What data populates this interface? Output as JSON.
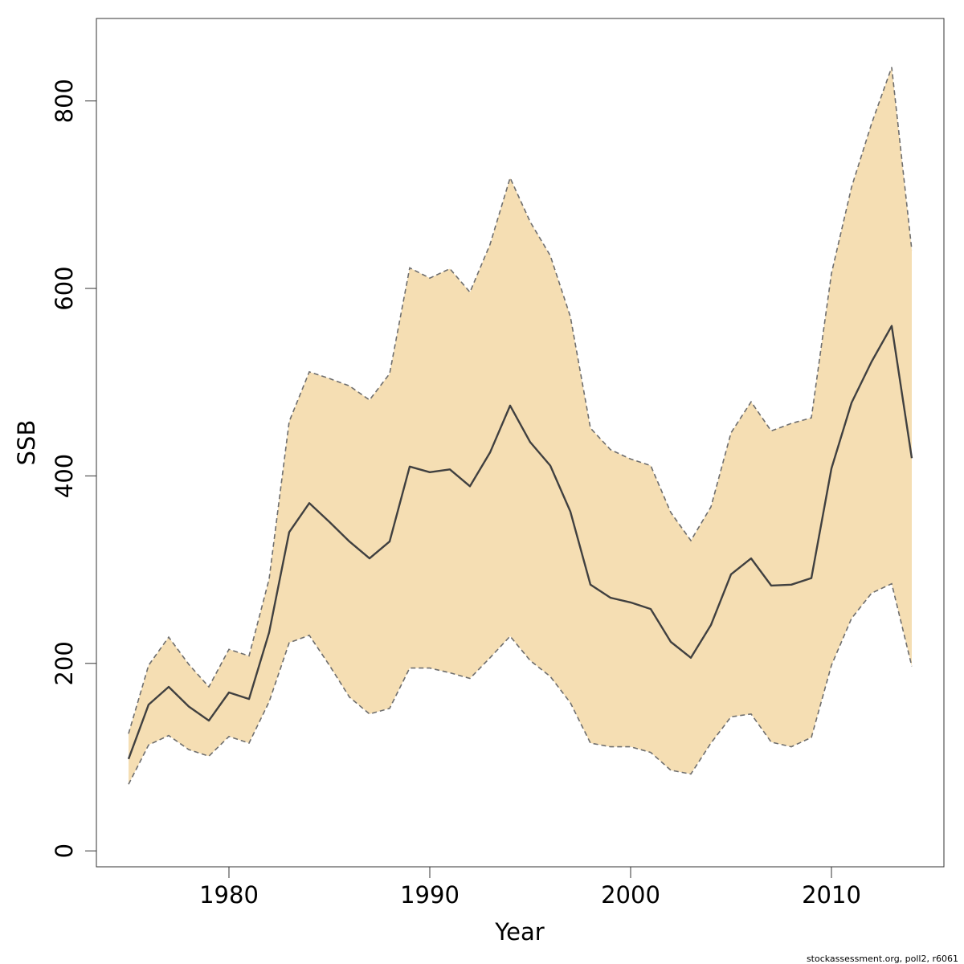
{
  "chart_data": {
    "type": "area",
    "title": "",
    "xlabel": "Year",
    "ylabel": "SSB",
    "xlim": [
      1973.4,
      2015.6
    ],
    "ylim": [
      -17,
      888
    ],
    "x_ticks": [
      1980,
      1990,
      2000,
      2010
    ],
    "y_ticks": [
      0,
      200,
      400,
      600,
      800
    ],
    "grid": false,
    "band_color": "#f5deb3",
    "line_color": "#404040",
    "bound_color": "#6e6e6e",
    "x": [
      1975,
      1976,
      1977,
      1978,
      1979,
      1980,
      1981,
      1982,
      1983,
      1984,
      1985,
      1986,
      1987,
      1988,
      1989,
      1990,
      1991,
      1992,
      1993,
      1994,
      1995,
      1996,
      1997,
      1998,
      1999,
      2000,
      2001,
      2002,
      2003,
      2004,
      2005,
      2006,
      2007,
      2008,
      2009,
      2010,
      2011,
      2012,
      2013,
      2014
    ],
    "series": [
      {
        "role": "estimate",
        "values": [
          98,
          156,
          175,
          154,
          139,
          169,
          162,
          233,
          340,
          371,
          351,
          330,
          312,
          330,
          410,
          404,
          407,
          389,
          425,
          475,
          436,
          411,
          362,
          284,
          270,
          265,
          258,
          223,
          206,
          241,
          295,
          312,
          283,
          284,
          291,
          408,
          478,
          522,
          560,
          419
        ]
      },
      {
        "role": "upper",
        "values": [
          125,
          198,
          228,
          199,
          175,
          215,
          208,
          290,
          458,
          511,
          504,
          496,
          481,
          509,
          622,
          611,
          621,
          596,
          647,
          718,
          671,
          635,
          570,
          451,
          428,
          418,
          411,
          361,
          331,
          367,
          446,
          479,
          448,
          456,
          462,
          616,
          708,
          776,
          836,
          641
        ]
      },
      {
        "role": "lower",
        "values": [
          71,
          113,
          123,
          108,
          101,
          122,
          115,
          159,
          222,
          230,
          198,
          164,
          146,
          152,
          195,
          195,
          190,
          184,
          206,
          229,
          203,
          186,
          158,
          115,
          111,
          111,
          105,
          86,
          82,
          115,
          143,
          146,
          116,
          111,
          121,
          198,
          248,
          275,
          285,
          197
        ]
      }
    ]
  },
  "footer": {
    "source_text": "stockassessment.org, poll2, r6061"
  }
}
